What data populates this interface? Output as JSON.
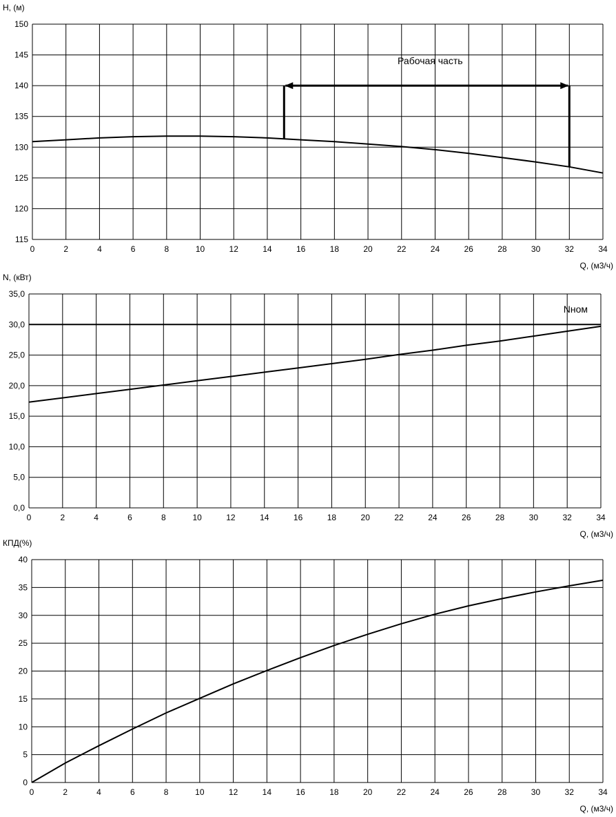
{
  "chart_data": [
    {
      "id": "head",
      "type": "line",
      "title": "",
      "ylabel": "H, (м)",
      "xlabel": "Q, (м3/ч)",
      "xlim": [
        0,
        34
      ],
      "ylim": [
        115,
        150
      ],
      "x_ticks": [
        0,
        2,
        4,
        6,
        8,
        10,
        12,
        14,
        16,
        18,
        20,
        22,
        24,
        26,
        28,
        30,
        32,
        34
      ],
      "y_ticks": [
        115,
        120,
        125,
        130,
        135,
        140,
        145,
        150
      ],
      "y_tick_labels": [
        "115",
        "120",
        "125",
        "130",
        "135",
        "140",
        "145",
        "150"
      ],
      "grid": true,
      "series": [
        {
          "x": [
            0,
            2,
            4,
            6,
            8,
            10,
            12,
            14,
            16,
            18,
            20,
            22,
            24,
            26,
            28,
            30,
            32,
            34
          ],
          "y": [
            130.9,
            131.2,
            131.5,
            131.7,
            131.8,
            131.8,
            131.7,
            131.5,
            131.2,
            130.9,
            130.5,
            130.1,
            129.6,
            129.0,
            128.3,
            127.6,
            126.8,
            125.8
          ]
        }
      ],
      "annotations": [
        {
          "type": "working-range",
          "text": "Рабочая часть",
          "x_start": 15,
          "x_end": 32,
          "y_level": 140,
          "y_start": 131.4,
          "y_end": 126.8
        }
      ]
    },
    {
      "id": "power",
      "type": "line",
      "title": "",
      "ylabel": "N, (кВт)",
      "xlabel": "Q, (м3/ч)",
      "xlim": [
        0,
        34
      ],
      "ylim": [
        0,
        35
      ],
      "x_ticks": [
        0,
        2,
        4,
        6,
        8,
        10,
        12,
        14,
        16,
        18,
        20,
        22,
        24,
        26,
        28,
        30,
        32,
        34
      ],
      "y_ticks": [
        0,
        5,
        10,
        15,
        20,
        25,
        30,
        35
      ],
      "y_tick_labels": [
        "0,0",
        "5,0",
        "10,0",
        "15,0",
        "20,0",
        "25,0",
        "30,0",
        "35,0"
      ],
      "grid": true,
      "series": [
        {
          "x": [
            0,
            2,
            4,
            6,
            8,
            10,
            12,
            14,
            16,
            18,
            20,
            22,
            24,
            26,
            28,
            30,
            32,
            34
          ],
          "y": [
            17.3,
            18.0,
            18.7,
            19.4,
            20.1,
            20.8,
            21.5,
            22.2,
            22.9,
            23.6,
            24.3,
            25.1,
            25.8,
            26.6,
            27.3,
            28.1,
            28.9,
            29.7
          ]
        },
        {
          "name": "Nном",
          "x": [
            0,
            34
          ],
          "y": [
            30,
            30
          ]
        }
      ],
      "annotations": [
        {
          "text": "Nном",
          "x": 32.5,
          "y": 32.5
        }
      ]
    },
    {
      "id": "efficiency",
      "type": "line",
      "title": "",
      "ylabel": "КПД(%)",
      "xlabel": "Q, (м3/ч)",
      "xlim": [
        0,
        34
      ],
      "ylim": [
        0,
        40
      ],
      "x_ticks": [
        0,
        2,
        4,
        6,
        8,
        10,
        12,
        14,
        16,
        18,
        20,
        22,
        24,
        26,
        28,
        30,
        32,
        34
      ],
      "y_ticks": [
        0,
        5,
        10,
        15,
        20,
        25,
        30,
        35,
        40
      ],
      "y_tick_labels": [
        "0",
        "5",
        "10",
        "15",
        "20",
        "25",
        "30",
        "35",
        "40"
      ],
      "grid": true,
      "series": [
        {
          "x": [
            0,
            2,
            4,
            6,
            8,
            10,
            12,
            14,
            16,
            18,
            20,
            22,
            24,
            26,
            28,
            30,
            32,
            34
          ],
          "y": [
            0,
            3.5,
            6.6,
            9.6,
            12.5,
            15.1,
            17.7,
            20.1,
            22.4,
            24.6,
            26.6,
            28.5,
            30.2,
            31.7,
            33.0,
            34.2,
            35.3,
            36.3
          ]
        }
      ]
    }
  ]
}
